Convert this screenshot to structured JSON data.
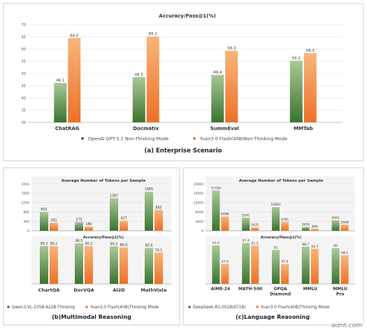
{
  "colors": {
    "green_top": "#8fb87a",
    "green_bottom": "#3f7a36",
    "orange_top": "#f6a868",
    "orange_bottom": "#ef7a33",
    "grid": "#dddddd",
    "panel_bg": "#f3f3f3",
    "text": "#333333"
  },
  "chart_data": [
    {
      "type": "bar",
      "title": "Accuracy/Pass@1(%)",
      "caption": "(a) Enterprise Scenario",
      "categories": [
        "ChatRAG",
        "Docmatix",
        "SummEval",
        "MMTab"
      ],
      "series": [
        {
          "name": "OpenAI GPT-5.1 Non-Thinking Mode",
          "values": [
            46.1,
            48.5,
            49.4,
            55.2
          ]
        },
        {
          "name": "Yuan3.0 Flash(40B)Non-Thinking Mode",
          "values": [
            64.5,
            65.1,
            59.3,
            58.3
          ]
        }
      ],
      "ylim": [
        30,
        70
      ],
      "yticks": [
        "30",
        "35",
        "40",
        "45",
        "50",
        "55",
        "60",
        "65",
        "70"
      ],
      "grid": true,
      "legend": "bottom"
    },
    {
      "type": "bar",
      "title": "Average Number of Tokens per Sample",
      "categories": [
        "ChartQA",
        "DocVQA",
        "AI2D",
        "MathVista"
      ],
      "series": [
        {
          "name": "Qwen3-VL-235B-A22B-Thinking",
          "values": [
            802,
            375,
            1387,
            1665
          ]
        },
        {
          "name": "Yuan3.0 Flash(40B)Thinking Mode",
          "values": [
            341,
            180,
            427,
            885
          ]
        }
      ],
      "ylim": [
        0,
        2000
      ],
      "yticks": [
        "0",
        "400",
        "800",
        "1200",
        "1600",
        "2000"
      ],
      "grid": true
    },
    {
      "type": "bar",
      "title": "Accuracy/Pass@1(%)",
      "caption": "(b)Multimodal Reasoning",
      "categories": [
        "ChartQA",
        "DocVQA",
        "AI2D",
        "MathVista"
      ],
      "series": [
        {
          "name": "Qwen3-VL-235B-A22B-Thinking",
          "values": [
            90.3,
            96.5,
            89.2,
            85.8
          ]
        },
        {
          "name": "Yuan3.0 Flash(40B)Thinking Mode",
          "values": [
            90.1,
            90.2,
            86.9,
            74.1
          ]
        }
      ],
      "ylim": [
        0,
        100
      ],
      "legend": "bottom"
    },
    {
      "type": "bar",
      "title": "Average Number of Tokens per Sample",
      "categories": [
        "AIME-24",
        "MATH-500",
        "GPQA Diamond",
        "MMLU",
        "MMLU Pro"
      ],
      "series": [
        {
          "name": "DeepSeek-R1-0528(671B)",
          "values": [
            17164,
            5541,
            10081,
            1616,
            4501
          ]
        },
        {
          "name": "Yuan3.0 Flash(40B)Thinking Mode",
          "values": [
            6086,
            1431,
            3761,
            806,
            2608
          ]
        }
      ],
      "ylim": [
        0,
        20000
      ],
      "yticks": [
        "0",
        "4000",
        "8000",
        "12000",
        "16000",
        "20000"
      ],
      "grid": true
    },
    {
      "type": "bar",
      "title": "Accuracy/Pass@1(%)",
      "caption": "(c)Language Reasoning",
      "categories": [
        "AIME-24",
        "MATH-500",
        "GPQA Diamond",
        "MMLU",
        "MMLU Pro"
      ],
      "series": [
        {
          "name": "DeepSeek-R1-0528(671B)",
          "values": [
            91.4,
            97.4,
            81,
            88.7,
            85
          ]
        },
        {
          "name": "Yuan3.0 Flash(40B)Thinking Mode",
          "values": [
            47.6,
            91.2,
            47.4,
            83.7,
            68.1
          ]
        }
      ],
      "ylim": [
        0,
        100
      ],
      "legend": "bottom"
    }
  ],
  "watermark": "aiznt.com"
}
